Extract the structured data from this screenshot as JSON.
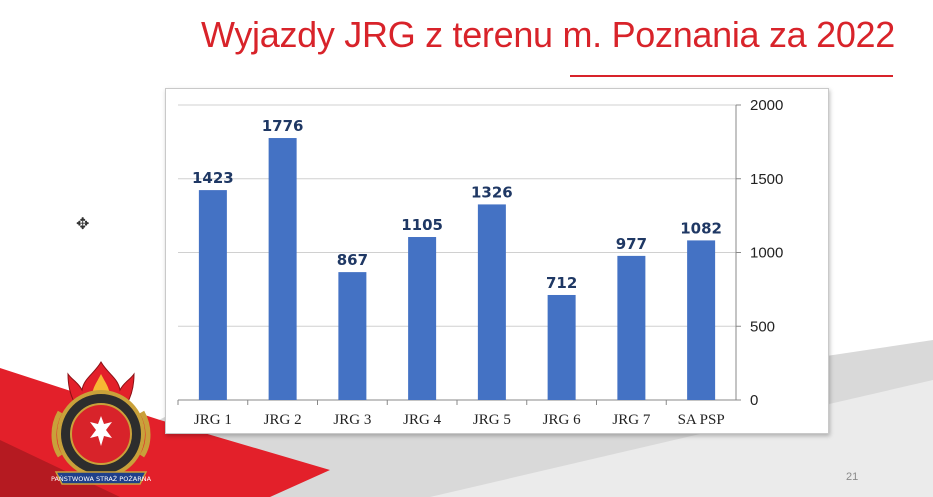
{
  "slide": {
    "title": "Wyjazdy JRG z terenu m. Poznania za 2022",
    "page_number": "21",
    "colors": {
      "title": "#d8232a",
      "bar": "#4472c4",
      "band_red": "#e3202a",
      "band_gray": "#d9d9d9"
    },
    "logo": {
      "icon": "fire-service-emblem-icon",
      "text": "PAŃSTWOWA STRAŻ POŻARNA"
    },
    "cursor_icon": "move-cursor-icon"
  },
  "chart_data": {
    "type": "bar",
    "title": "",
    "xlabel": "",
    "ylabel": "",
    "categories": [
      "JRG 1",
      "JRG 2",
      "JRG 3",
      "JRG 4",
      "JRG 5",
      "JRG 6",
      "JRG 7",
      "SA PSP"
    ],
    "values": [
      1423,
      1776,
      867,
      1105,
      1326,
      712,
      977,
      1082
    ],
    "data_labels": [
      "1423",
      "1776",
      "867",
      "1105",
      "1326",
      "712",
      "977",
      "1082"
    ],
    "ylim": [
      0,
      2000
    ],
    "yticks": [
      0,
      500,
      1000,
      1500,
      2000
    ],
    "ytick_labels": [
      "0",
      "500",
      "1000",
      "1500",
      "2000"
    ],
    "y_axis_side": "right",
    "grid": true,
    "legend": "none"
  }
}
